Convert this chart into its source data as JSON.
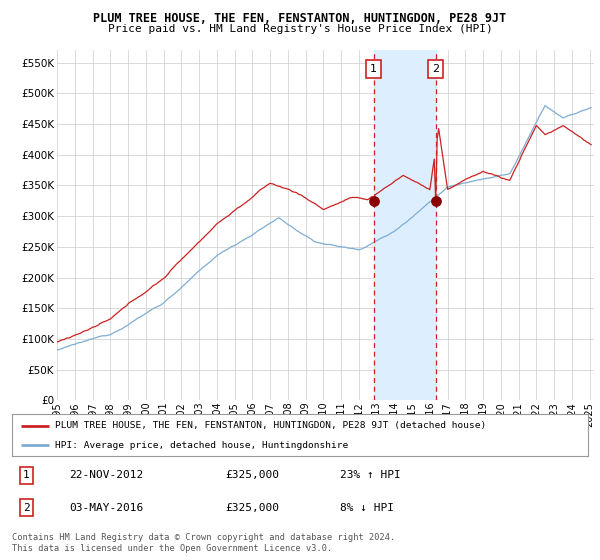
{
  "title": "PLUM TREE HOUSE, THE FEN, FENSTANTON, HUNTINGDON, PE28 9JT",
  "subtitle": "Price paid vs. HM Land Registry's House Price Index (HPI)",
  "legend_line1": "PLUM TREE HOUSE, THE FEN, FENSTANTON, HUNTINGDON, PE28 9JT (detached house)",
  "legend_line2": "HPI: Average price, detached house, Huntingdonshire",
  "transaction1_date": "22-NOV-2012",
  "transaction1_price": 325000,
  "transaction1_label": "23% ↑ HPI",
  "transaction2_date": "03-MAY-2016",
  "transaction2_price": 325000,
  "transaction2_label": "8% ↓ HPI",
  "footnote": "Contains HM Land Registry data © Crown copyright and database right 2024.\nThis data is licensed under the Open Government Licence v3.0.",
  "hpi_color": "#7eadd4",
  "price_color": "#cc2222",
  "dot_color": "#8b0000",
  "vline_color": "#cc2222",
  "shade_color": "#ddeeff",
  "grid_color": "#cccccc",
  "background_color": "#ffffff",
  "ylim": [
    0,
    570000
  ],
  "yticks": [
    0,
    50000,
    100000,
    150000,
    200000,
    250000,
    300000,
    350000,
    400000,
    450000,
    500000,
    550000
  ],
  "xlabel_years": [
    "1995",
    "1996",
    "1997",
    "1998",
    "1999",
    "2000",
    "2001",
    "2002",
    "2003",
    "2004",
    "2005",
    "2006",
    "2007",
    "2008",
    "2009",
    "2010",
    "2011",
    "2012",
    "2013",
    "2014",
    "2015",
    "2016",
    "2017",
    "2018",
    "2019",
    "2020",
    "2021",
    "2022",
    "2023",
    "2024",
    "2025"
  ]
}
